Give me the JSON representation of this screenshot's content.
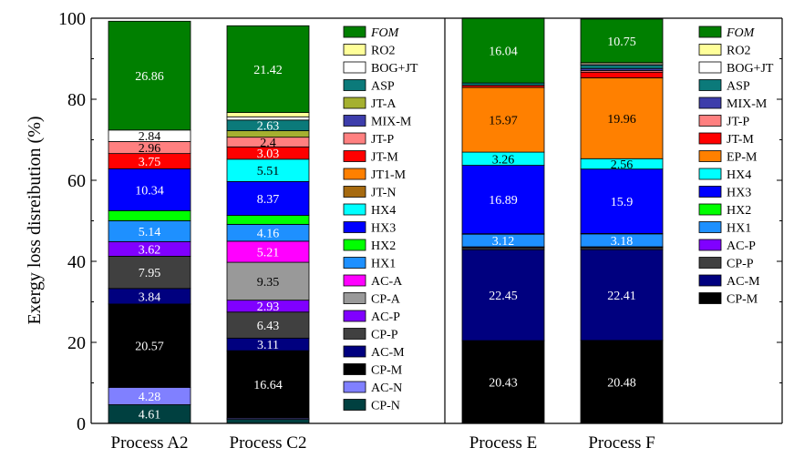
{
  "chart_data": {
    "type": "bar",
    "stacked": true,
    "ylabel": "Exergy loss disreibution (%)",
    "ylim": [
      0,
      100
    ],
    "yticks": [
      0,
      20,
      40,
      60,
      80,
      100
    ],
    "categories": [
      "Process A2",
      "Process C2",
      "Process E",
      "Process F"
    ],
    "colors": {
      "FOM": "#007f00",
      "RO2": "#ffff99",
      "BOG+JT": "#ffffff",
      "ASP": "#0b7a7a",
      "JT-A": "#a5b030",
      "MIX-M": "#3d3dab",
      "JT-P": "#ff8080",
      "JT-M": "#ff0000",
      "JT1-M": "#ff8000",
      "EP-M": "#ff8000",
      "JT-N": "#a66a10",
      "HX4": "#00ffff",
      "HX3": "#0000ff",
      "HX2": "#00ff00",
      "HX1": "#1e90ff",
      "AC-A": "#ff00ff",
      "CP-A": "#999999",
      "AC-P": "#8000ff",
      "CP-P": "#404040",
      "AC-M": "#00007f",
      "CP-M": "#000000",
      "AC-N": "#8080ff",
      "CP-N": "#004040"
    },
    "legends": [
      {
        "items": [
          "FOM",
          "RO2",
          "BOG+JT",
          "ASP",
          "JT-A",
          "MIX-M",
          "JT-P",
          "JT-M",
          "JT1-M",
          "JT-N",
          "HX4",
          "HX3",
          "HX2",
          "HX1",
          "AC-A",
          "CP-A",
          "AC-P",
          "CP-P",
          "AC-M",
          "CP-M",
          "AC-N",
          "CP-N"
        ]
      },
      {
        "items": [
          "FOM",
          "RO2",
          "BOG+JT",
          "ASP",
          "MIX-M",
          "JT-P",
          "JT-M",
          "EP-M",
          "HX4",
          "HX3",
          "HX2",
          "HX1",
          "AC-P",
          "CP-P",
          "AC-M",
          "CP-M"
        ]
      }
    ],
    "bars": [
      {
        "category": "Process A2",
        "segments": [
          {
            "name": "CP-N",
            "value": 4.61,
            "label": "4.61"
          },
          {
            "name": "AC-N",
            "value": 4.28,
            "label": "4.28"
          },
          {
            "name": "CP-M",
            "value": 20.57,
            "label": "20.57"
          },
          {
            "name": "AC-M",
            "value": 3.84,
            "label": "3.84"
          },
          {
            "name": "CP-P",
            "value": 7.95,
            "label": "7.95"
          },
          {
            "name": "AC-P",
            "value": 3.62,
            "label": "3.62"
          },
          {
            "name": "HX1",
            "value": 5.14,
            "label": "5.14"
          },
          {
            "name": "HX2",
            "value": 2.5,
            "label": ""
          },
          {
            "name": "HX3",
            "value": 10.34,
            "label": "10.34"
          },
          {
            "name": "JT-M",
            "value": 3.75,
            "label": "3.75"
          },
          {
            "name": "JT-P",
            "value": 2.96,
            "label": "2.96"
          },
          {
            "name": "BOG+JT",
            "value": 2.84,
            "label": "2.84"
          },
          {
            "name": "FOM",
            "value": 26.86,
            "label": "26.86"
          }
        ]
      },
      {
        "category": "Process C2",
        "segments": [
          {
            "name": "CP-N",
            "value": 1.0,
            "label": ""
          },
          {
            "name": "AC-N",
            "value": 0.3,
            "label": ""
          },
          {
            "name": "CP-M",
            "value": 16.64,
            "label": "16.64"
          },
          {
            "name": "AC-M",
            "value": 3.11,
            "label": "3.11"
          },
          {
            "name": "CP-P",
            "value": 6.43,
            "label": "6.43"
          },
          {
            "name": "AC-P",
            "value": 2.93,
            "label": "2.93"
          },
          {
            "name": "CP-A",
            "value": 9.35,
            "label": "9.35"
          },
          {
            "name": "AC-A",
            "value": 5.21,
            "label": "5.21"
          },
          {
            "name": "HX1",
            "value": 4.16,
            "label": "4.16"
          },
          {
            "name": "HX2",
            "value": 2.2,
            "label": ""
          },
          {
            "name": "HX3",
            "value": 8.37,
            "label": "8.37"
          },
          {
            "name": "HX4",
            "value": 5.51,
            "label": "5.51"
          },
          {
            "name": "JT-M",
            "value": 3.03,
            "label": "3.03"
          },
          {
            "name": "JT-P",
            "value": 2.4,
            "label": "2.4"
          },
          {
            "name": "JT-A",
            "value": 1.6,
            "label": ""
          },
          {
            "name": "ASP",
            "value": 2.63,
            "label": "2.63"
          },
          {
            "name": "BOG+JT",
            "value": 0.8,
            "label": ""
          },
          {
            "name": "RO2",
            "value": 1.05,
            "label": ""
          },
          {
            "name": "FOM",
            "value": 21.42,
            "label": "21.42"
          }
        ]
      },
      {
        "category": "Process E",
        "segments": [
          {
            "name": "CP-M",
            "value": 20.43,
            "label": "20.43"
          },
          {
            "name": "AC-M",
            "value": 22.45,
            "label": "22.45"
          },
          {
            "name": "CP-P",
            "value": 0.5,
            "label": ""
          },
          {
            "name": "AC-P",
            "value": 0.2,
            "label": ""
          },
          {
            "name": "HX1",
            "value": 3.12,
            "label": "3.12"
          },
          {
            "name": "HX2",
            "value": 0.1,
            "label": ""
          },
          {
            "name": "HX3",
            "value": 16.89,
            "label": "16.89"
          },
          {
            "name": "HX4",
            "value": 3.26,
            "label": "3.26"
          },
          {
            "name": "EP-M",
            "value": 15.97,
            "label": "15.97"
          },
          {
            "name": "JT-M",
            "value": 0.5,
            "label": ""
          },
          {
            "name": "ASP",
            "value": 0.6,
            "label": ""
          },
          {
            "name": "FOM",
            "value": 16.04,
            "label": "16.04"
          }
        ]
      },
      {
        "category": "Process F",
        "segments": [
          {
            "name": "CP-M",
            "value": 20.48,
            "label": "20.48"
          },
          {
            "name": "AC-M",
            "value": 22.41,
            "label": "22.41"
          },
          {
            "name": "CP-P",
            "value": 0.5,
            "label": ""
          },
          {
            "name": "AC-P",
            "value": 0.2,
            "label": ""
          },
          {
            "name": "HX1",
            "value": 3.18,
            "label": "3.18"
          },
          {
            "name": "HX2",
            "value": 0.1,
            "label": ""
          },
          {
            "name": "HX3",
            "value": 15.9,
            "label": "15.9"
          },
          {
            "name": "HX4",
            "value": 2.56,
            "label": "2.56"
          },
          {
            "name": "EP-M",
            "value": 19.96,
            "label": "19.96"
          },
          {
            "name": "JT-M",
            "value": 1.4,
            "label": ""
          },
          {
            "name": "JT-P",
            "value": 0.4,
            "label": ""
          },
          {
            "name": "MIX-M",
            "value": 0.5,
            "label": ""
          },
          {
            "name": "ASP",
            "value": 0.85,
            "label": ""
          },
          {
            "name": "BOG+JT",
            "value": 0.3,
            "label": ""
          },
          {
            "name": "RO2",
            "value": 0.3,
            "label": ""
          },
          {
            "name": "FOM",
            "value": 10.75,
            "label": "10.75"
          }
        ]
      }
    ]
  }
}
